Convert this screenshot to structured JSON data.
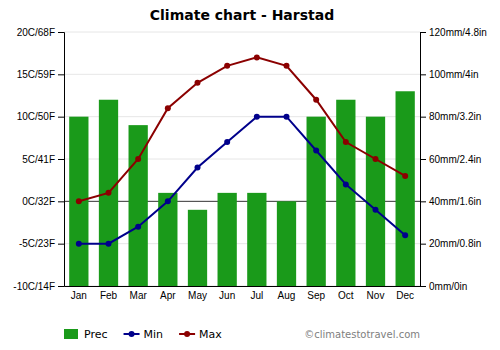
{
  "chart_data": {
    "type": "bar",
    "title": "Climate chart - Harstad",
    "categories": [
      "Jan",
      "Feb",
      "Mar",
      "Apr",
      "May",
      "Jun",
      "Jul",
      "Aug",
      "Sep",
      "Oct",
      "Nov",
      "Dec"
    ],
    "series": [
      {
        "name": "Prec",
        "type": "bar",
        "axis": "y2",
        "color": "#1a9a1a",
        "values": [
          80,
          88,
          76,
          44,
          36,
          44,
          44,
          40,
          80,
          88,
          80,
          92
        ]
      },
      {
        "name": "Min",
        "type": "line",
        "marker": "circle",
        "color": "#00008B",
        "values": [
          -5,
          -5,
          -3,
          0,
          4,
          7,
          10,
          10,
          6,
          2,
          -1,
          -4
        ]
      },
      {
        "name": "Max",
        "type": "line",
        "marker": "circle",
        "color": "#8B0000",
        "values": [
          0,
          1,
          5,
          11,
          14,
          16,
          17,
          16,
          12,
          7,
          5,
          3
        ]
      }
    ],
    "ylim": [
      -10,
      20
    ],
    "yticks": [
      {
        "value": -10,
        "label": "-10C/14F"
      },
      {
        "value": -5,
        "label": "-5C/23F"
      },
      {
        "value": 0,
        "label": "0C/32F"
      },
      {
        "value": 5,
        "label": "5C/41F"
      },
      {
        "value": 10,
        "label": "10C/50F"
      },
      {
        "value": 15,
        "label": "15C/59F"
      },
      {
        "value": 20,
        "label": "20C/68F"
      }
    ],
    "y2lim": [
      0,
      120
    ],
    "y2ticks": [
      {
        "value": 0,
        "label": "0mm/0in"
      },
      {
        "value": 20,
        "label": "20mm/0.8in"
      },
      {
        "value": 40,
        "label": "40mm/1.6in"
      },
      {
        "value": 60,
        "label": "60mm/2.4in"
      },
      {
        "value": 80,
        "label": "80mm/3.2in"
      },
      {
        "value": 100,
        "label": "100mm/4in"
      },
      {
        "value": 120,
        "label": "120mm/4.8in"
      }
    ],
    "grid": true,
    "legend": "bottom",
    "annotations": [
      "©climatestotravel.com"
    ]
  }
}
